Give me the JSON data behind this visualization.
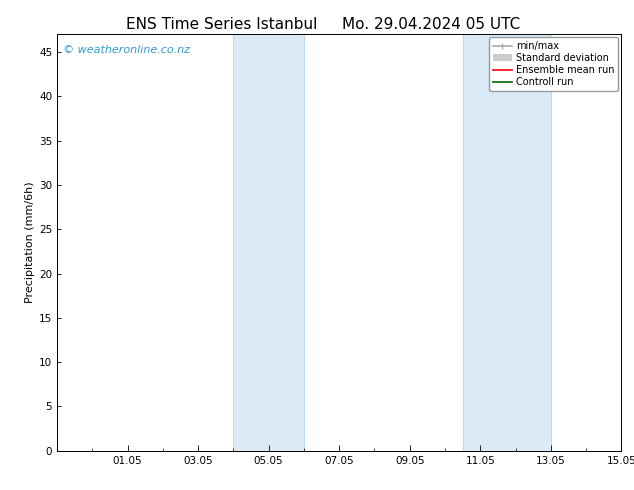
{
  "title_left": "ENS Time Series Istanbul",
  "title_right": "Mo. 29.04.2024 05 UTC",
  "ylabel": "Precipitation (mm/6h)",
  "ylim": [
    0,
    47
  ],
  "yticks": [
    0,
    5,
    10,
    15,
    20,
    25,
    30,
    35,
    40,
    45
  ],
  "xtick_labels": [
    "01.05",
    "03.05",
    "05.05",
    "07.05",
    "09.05",
    "11.05",
    "13.05",
    "15.05"
  ],
  "xtick_positions": [
    2,
    4,
    6,
    8,
    10,
    12,
    14,
    16
  ],
  "xlim": [
    0,
    16
  ],
  "band1_xmin": 5.0,
  "band1_xmax": 7.0,
  "band2_xmin": 11.5,
  "band2_xmax": 14.0,
  "shaded_color": "#daeaf7",
  "shaded_edge_color": "#c0d8ee",
  "background_color": "#ffffff",
  "watermark_text": "© weatheronline.co.nz",
  "watermark_color": "#3399cc",
  "legend_items": [
    {
      "label": "min/max",
      "color": "#aaaaaa",
      "lw": 1.2
    },
    {
      "label": "Standard deviation",
      "color": "#cccccc",
      "lw": 5
    },
    {
      "label": "Ensemble mean run",
      "color": "#ff0000",
      "lw": 1.2
    },
    {
      "label": "Controll run",
      "color": "#006600",
      "lw": 1.2
    }
  ],
  "title_fontsize": 11,
  "ylabel_fontsize": 8,
  "tick_fontsize": 7.5,
  "legend_fontsize": 7,
  "watermark_fontsize": 8
}
